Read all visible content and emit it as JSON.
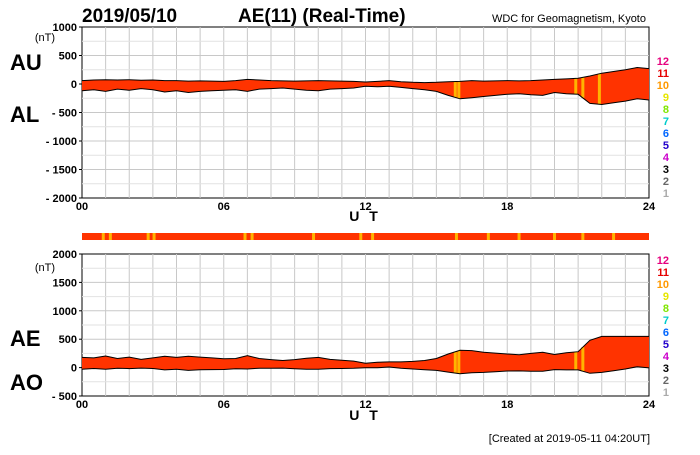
{
  "header": {
    "date": "2019/05/10",
    "title": "AE(11) (Real-Time)",
    "source": "WDC for Geomagnetism, Kyoto",
    "footer": "[Created at 2019-05-11 04:20UT]"
  },
  "colors": {
    "envelope_fill": "#ff3300",
    "highlight": "#ffb400",
    "outline": "#000000",
    "grid": "#c8c8c8"
  },
  "station_legend": {
    "labels": [
      "12",
      "11",
      "10",
      "9",
      "8",
      "7",
      "6",
      "5",
      "4",
      "3",
      "2",
      "1"
    ],
    "colors": [
      "#e6007e",
      "#e60000",
      "#ff9900",
      "#e6e600",
      "#80e600",
      "#00cccc",
      "#0066ff",
      "#2200cc",
      "#cc00cc",
      "#000000",
      "#666666",
      "#aaaaaa"
    ]
  },
  "status_bar": {
    "base_color": "#ff3300",
    "highlight_color": "#ffb400",
    "highlight_hours": [
      0.9,
      1.2,
      2.8,
      3.05,
      6.9,
      7.2,
      9.8,
      11.8,
      12.3,
      15.85,
      17.2,
      18.5,
      20.0,
      21.2,
      22.5
    ]
  },
  "chart_data": [
    {
      "type": "area",
      "panel": "AU/AL",
      "labels": {
        "upper": "AU",
        "lower": "AL"
      },
      "unit": "(nT)",
      "xlabel": "U T",
      "ylim": [
        -2000,
        1000
      ],
      "yticks": [
        1000,
        500,
        0,
        -500,
        -1000,
        -1500,
        -2000
      ],
      "ytick_labels": [
        "1000",
        "500",
        "0",
        "- 500",
        "- 1000",
        "- 1500",
        "- 2000"
      ],
      "xlim": [
        0,
        24
      ],
      "xticks": [
        0,
        6,
        12,
        18,
        24
      ],
      "xtick_labels": [
        "00",
        "06",
        "12",
        "18",
        "24"
      ],
      "x": [
        0,
        0.5,
        1,
        1.5,
        2,
        2.5,
        3,
        3.5,
        4,
        4.5,
        5,
        5.5,
        6,
        6.5,
        7,
        7.5,
        8,
        8.5,
        9,
        9.5,
        10,
        10.5,
        11,
        11.5,
        12,
        12.5,
        13,
        13.5,
        14,
        14.5,
        15,
        15.5,
        16,
        16.5,
        17,
        17.5,
        18,
        18.5,
        19,
        19.5,
        20,
        20.5,
        21,
        21.5,
        22,
        22.5,
        23,
        23.5,
        24
      ],
      "series": [
        {
          "name": "AU",
          "values": [
            60,
            70,
            75,
            70,
            75,
            65,
            70,
            60,
            60,
            50,
            55,
            50,
            45,
            60,
            80,
            70,
            60,
            55,
            50,
            55,
            60,
            55,
            50,
            45,
            35,
            45,
            60,
            40,
            30,
            25,
            30,
            40,
            45,
            60,
            50,
            55,
            60,
            55,
            60,
            70,
            80,
            90,
            100,
            140,
            190,
            220,
            250,
            290,
            270
          ]
        },
        {
          "name": "AL",
          "values": [
            -120,
            -100,
            -130,
            -90,
            -110,
            -80,
            -100,
            -140,
            -120,
            -150,
            -130,
            -120,
            -110,
            -100,
            -130,
            -90,
            -80,
            -70,
            -90,
            -110,
            -120,
            -90,
            -80,
            -70,
            -40,
            -50,
            -40,
            -60,
            -80,
            -100,
            -130,
            -200,
            -260,
            -240,
            -220,
            -200,
            -180,
            -170,
            -190,
            -200,
            -150,
            -170,
            -180,
            -340,
            -360,
            -330,
            -300,
            -260,
            -280
          ]
        }
      ],
      "highlights": [
        15.8,
        15.95,
        20.9,
        21.2,
        21.9
      ]
    },
    {
      "type": "area",
      "panel": "AE/AO",
      "labels": {
        "upper": "AE",
        "lower": "AO"
      },
      "unit": "(nT)",
      "xlabel": "U T",
      "ylim": [
        -500,
        2000
      ],
      "yticks": [
        2000,
        1500,
        1000,
        500,
        0,
        -500
      ],
      "ytick_labels": [
        "2000",
        "1500",
        "1000",
        "500",
        "0",
        "- 500"
      ],
      "xlim": [
        0,
        24
      ],
      "xticks": [
        0,
        6,
        12,
        18,
        24
      ],
      "xtick_labels": [
        "00",
        "06",
        "12",
        "18",
        "24"
      ],
      "x": [
        0,
        0.5,
        1,
        1.5,
        2,
        2.5,
        3,
        3.5,
        4,
        4.5,
        5,
        5.5,
        6,
        6.5,
        7,
        7.5,
        8,
        8.5,
        9,
        9.5,
        10,
        10.5,
        11,
        11.5,
        12,
        12.5,
        13,
        13.5,
        14,
        14.5,
        15,
        15.5,
        16,
        16.5,
        17,
        17.5,
        18,
        18.5,
        19,
        19.5,
        20,
        20.5,
        21,
        21.5,
        22,
        22.5,
        23,
        23.5,
        24
      ],
      "series": [
        {
          "name": "AE",
          "values": [
            180,
            170,
            205,
            160,
            185,
            145,
            170,
            200,
            180,
            200,
            185,
            170,
            155,
            160,
            210,
            160,
            140,
            125,
            140,
            165,
            180,
            145,
            130,
            115,
            75,
            95,
            100,
            100,
            110,
            125,
            160,
            240,
            305,
            300,
            270,
            255,
            240,
            225,
            250,
            270,
            230,
            260,
            280,
            480,
            550,
            550,
            550,
            550,
            550
          ]
        },
        {
          "name": "AO",
          "values": [
            -30,
            -15,
            -28,
            -10,
            -18,
            -8,
            -15,
            -40,
            -30,
            -50,
            -38,
            -35,
            -33,
            -20,
            -25,
            -10,
            -10,
            -8,
            -20,
            -28,
            -30,
            -18,
            -15,
            -13,
            -3,
            -3,
            10,
            -10,
            -25,
            -38,
            -50,
            -80,
            -108,
            -90,
            -85,
            -73,
            -60,
            -58,
            -65,
            -65,
            -35,
            -40,
            -40,
            -100,
            -85,
            -55,
            -25,
            15,
            -5
          ]
        }
      ],
      "highlights": [
        15.8,
        15.95,
        20.9,
        21.2
      ]
    }
  ]
}
